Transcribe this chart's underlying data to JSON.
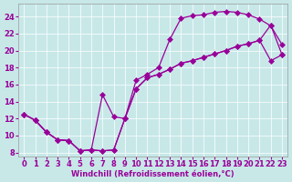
{
  "xlabel": "Windchill (Refroidissement éolien,°C)",
  "bg_color": "#c8e8e8",
  "line_color": "#990099",
  "grid_color": "#aaaaaa",
  "xlim_min": -0.5,
  "xlim_max": 23.5,
  "ylim_min": 7.5,
  "ylim_max": 25.5,
  "xticks": [
    0,
    1,
    2,
    3,
    4,
    5,
    6,
    7,
    8,
    9,
    10,
    11,
    12,
    13,
    14,
    15,
    16,
    17,
    18,
    19,
    20,
    21,
    22,
    23
  ],
  "yticks": [
    8,
    10,
    12,
    14,
    16,
    18,
    20,
    22,
    24
  ],
  "fontsize_axis": 6,
  "line1_x": [
    0,
    1,
    2,
    3,
    4,
    5,
    6,
    7,
    8,
    9,
    10,
    11,
    12,
    13,
    14,
    15,
    16,
    17,
    18,
    19,
    20,
    21,
    22,
    23
  ],
  "line1_y": [
    12.5,
    11.8,
    10.4,
    9.5,
    9.4,
    8.2,
    8.3,
    8.2,
    8.3,
    12.0,
    16.5,
    17.2,
    18.0,
    21.3,
    23.8,
    24.1,
    24.2,
    24.5,
    24.6,
    24.5,
    24.2,
    23.7,
    22.9,
    20.7
  ],
  "line2_x": [
    0,
    1,
    2,
    3,
    4,
    5,
    6,
    7,
    8,
    9,
    10,
    11,
    12,
    13,
    14,
    15,
    16,
    17,
    18,
    19,
    20,
    21,
    22,
    23
  ],
  "line2_y": [
    12.5,
    11.8,
    10.4,
    9.5,
    9.4,
    8.2,
    8.3,
    14.8,
    12.2,
    12.0,
    15.5,
    16.8,
    17.2,
    17.8,
    18.5,
    18.8,
    19.2,
    19.6,
    20.0,
    20.5,
    20.8,
    21.2,
    18.8,
    19.5
  ],
  "line3_x": [
    0,
    1,
    2,
    3,
    4,
    5,
    6,
    7,
    8,
    9,
    10,
    11,
    12,
    13,
    14,
    15,
    16,
    17,
    18,
    19,
    20,
    21,
    22,
    23
  ],
  "line3_y": [
    12.5,
    11.8,
    10.4,
    9.5,
    9.4,
    8.2,
    8.3,
    8.2,
    8.3,
    12.0,
    15.5,
    16.8,
    17.2,
    17.8,
    18.5,
    18.8,
    19.2,
    19.6,
    20.0,
    20.5,
    20.8,
    21.2,
    23.0,
    19.5
  ]
}
